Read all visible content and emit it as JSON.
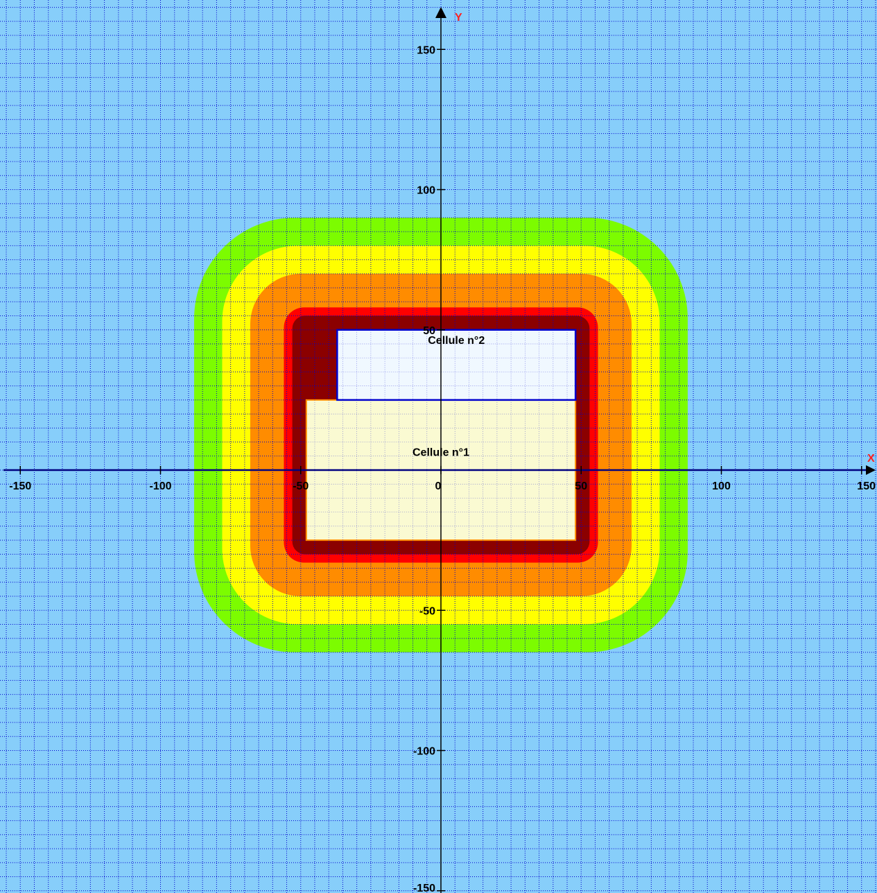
{
  "chart_data": {
    "type": "heatmap",
    "x_axis_name": "X",
    "y_axis_name": "Y",
    "xlim": [
      -150,
      150
    ],
    "ylim": [
      -150,
      160
    ],
    "grid": true,
    "grid_step": 5,
    "x_ticks": [
      -150,
      -100,
      -50,
      0,
      50,
      100,
      150
    ],
    "y_ticks": [
      150,
      100,
      50,
      -50,
      -100,
      -150
    ],
    "x_tick_labels": [
      "-150",
      "-100",
      "-50",
      "0",
      "50",
      "100",
      "150"
    ],
    "y_tick_labels": [
      "150",
      "100",
      "50",
      "-50",
      "-100",
      "-150"
    ],
    "zones": [
      {
        "color": "#7cfc00",
        "margin": 40
      },
      {
        "color": "#ffff00",
        "margin": 30
      },
      {
        "color": "#ff8c00",
        "margin": 20
      },
      {
        "color": "#ff0000",
        "margin": 8
      },
      {
        "color": "#8b0000",
        "margin": 5
      }
    ],
    "cells": [
      {
        "label": "Cellule n°1",
        "x": [
          -48,
          48
        ],
        "y": [
          -25,
          25
        ],
        "fill": "#fafad2",
        "stroke": "#ff8c00"
      },
      {
        "label": "Cellule n°2",
        "x": [
          -37,
          48
        ],
        "y": [
          25,
          50
        ],
        "fill": "#f0f8ff",
        "stroke": "#0000cd"
      }
    ]
  },
  "colors": {
    "background": "#87cefa",
    "grid": "#0000cd",
    "axis": "#000080",
    "axis_name": "#ff2020"
  }
}
